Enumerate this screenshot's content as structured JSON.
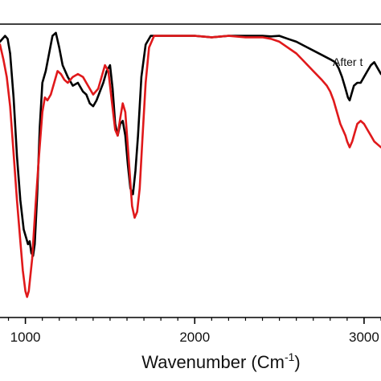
{
  "chart_data": {
    "type": "line",
    "title": "",
    "xlabel": {
      "base": "Wavenumber (Cm",
      "sup": "-1",
      "close": ")"
    },
    "ylabel": "",
    "xlim": [
      850,
      3100
    ],
    "ylim": [
      0.0,
      1.0
    ],
    "x_ticks": [
      1000,
      2000,
      3000
    ],
    "x_tick_labels": [
      "1000",
      "2000",
      "3000"
    ],
    "grid": false,
    "legend_text": "After t",
    "series": [
      {
        "color": "#000000",
        "points": [
          [
            850,
            0.94
          ],
          [
            880,
            0.96
          ],
          [
            895,
            0.95
          ],
          [
            910,
            0.9
          ],
          [
            930,
            0.75
          ],
          [
            950,
            0.55
          ],
          [
            970,
            0.4
          ],
          [
            990,
            0.3
          ],
          [
            1005,
            0.27
          ],
          [
            1015,
            0.25
          ],
          [
            1025,
            0.26
          ],
          [
            1035,
            0.22
          ],
          [
            1045,
            0.21
          ],
          [
            1055,
            0.25
          ],
          [
            1070,
            0.42
          ],
          [
            1085,
            0.65
          ],
          [
            1100,
            0.8
          ],
          [
            1120,
            0.84
          ],
          [
            1140,
            0.9
          ],
          [
            1160,
            0.96
          ],
          [
            1180,
            0.97
          ],
          [
            1200,
            0.92
          ],
          [
            1220,
            0.86
          ],
          [
            1250,
            0.82
          ],
          [
            1280,
            0.79
          ],
          [
            1310,
            0.8
          ],
          [
            1340,
            0.77
          ],
          [
            1360,
            0.76
          ],
          [
            1380,
            0.73
          ],
          [
            1400,
            0.72
          ],
          [
            1420,
            0.74
          ],
          [
            1440,
            0.77
          ],
          [
            1460,
            0.8
          ],
          [
            1480,
            0.84
          ],
          [
            1500,
            0.86
          ],
          [
            1515,
            0.78
          ],
          [
            1530,
            0.66
          ],
          [
            1545,
            0.62
          ],
          [
            1560,
            0.66
          ],
          [
            1575,
            0.67
          ],
          [
            1590,
            0.62
          ],
          [
            1605,
            0.52
          ],
          [
            1620,
            0.44
          ],
          [
            1635,
            0.42
          ],
          [
            1650,
            0.5
          ],
          [
            1665,
            0.62
          ],
          [
            1685,
            0.82
          ],
          [
            1710,
            0.93
          ],
          [
            1740,
            0.96
          ],
          [
            1800,
            0.96
          ],
          [
            1900,
            0.96
          ],
          [
            2000,
            0.96
          ],
          [
            2100,
            0.955
          ],
          [
            2200,
            0.96
          ],
          [
            2300,
            0.96
          ],
          [
            2400,
            0.96
          ],
          [
            2450,
            0.958
          ],
          [
            2500,
            0.96
          ],
          [
            2550,
            0.95
          ],
          [
            2600,
            0.94
          ],
          [
            2650,
            0.925
          ],
          [
            2700,
            0.91
          ],
          [
            2750,
            0.895
          ],
          [
            2800,
            0.88
          ],
          [
            2830,
            0.87
          ],
          [
            2850,
            0.85
          ],
          [
            2870,
            0.82
          ],
          [
            2890,
            0.78
          ],
          [
            2905,
            0.75
          ],
          [
            2915,
            0.74
          ],
          [
            2925,
            0.76
          ],
          [
            2940,
            0.79
          ],
          [
            2960,
            0.8
          ],
          [
            2980,
            0.8
          ],
          [
            3000,
            0.82
          ],
          [
            3020,
            0.84
          ],
          [
            3040,
            0.86
          ],
          [
            3060,
            0.87
          ],
          [
            3080,
            0.85
          ],
          [
            3100,
            0.83
          ]
        ]
      },
      {
        "color": "#e0191b",
        "points": [
          [
            850,
            0.93
          ],
          [
            870,
            0.88
          ],
          [
            890,
            0.82
          ],
          [
            910,
            0.72
          ],
          [
            930,
            0.56
          ],
          [
            950,
            0.4
          ],
          [
            970,
            0.26
          ],
          [
            985,
            0.16
          ],
          [
            1000,
            0.09
          ],
          [
            1010,
            0.07
          ],
          [
            1020,
            0.09
          ],
          [
            1040,
            0.2
          ],
          [
            1060,
            0.38
          ],
          [
            1080,
            0.55
          ],
          [
            1100,
            0.7
          ],
          [
            1115,
            0.75
          ],
          [
            1130,
            0.74
          ],
          [
            1150,
            0.76
          ],
          [
            1170,
            0.8
          ],
          [
            1190,
            0.84
          ],
          [
            1210,
            0.83
          ],
          [
            1230,
            0.81
          ],
          [
            1250,
            0.8
          ],
          [
            1280,
            0.82
          ],
          [
            1310,
            0.83
          ],
          [
            1340,
            0.82
          ],
          [
            1370,
            0.79
          ],
          [
            1400,
            0.76
          ],
          [
            1430,
            0.78
          ],
          [
            1450,
            0.82
          ],
          [
            1470,
            0.86
          ],
          [
            1490,
            0.84
          ],
          [
            1510,
            0.74
          ],
          [
            1530,
            0.64
          ],
          [
            1545,
            0.62
          ],
          [
            1560,
            0.68
          ],
          [
            1575,
            0.73
          ],
          [
            1590,
            0.7
          ],
          [
            1605,
            0.58
          ],
          [
            1620,
            0.46
          ],
          [
            1630,
            0.38
          ],
          [
            1645,
            0.34
          ],
          [
            1660,
            0.36
          ],
          [
            1675,
            0.44
          ],
          [
            1690,
            0.6
          ],
          [
            1710,
            0.8
          ],
          [
            1730,
            0.92
          ],
          [
            1760,
            0.96
          ],
          [
            1800,
            0.96
          ],
          [
            1900,
            0.96
          ],
          [
            2000,
            0.96
          ],
          [
            2100,
            0.955
          ],
          [
            2200,
            0.96
          ],
          [
            2300,
            0.955
          ],
          [
            2400,
            0.955
          ],
          [
            2450,
            0.95
          ],
          [
            2500,
            0.94
          ],
          [
            2550,
            0.92
          ],
          [
            2600,
            0.9
          ],
          [
            2650,
            0.87
          ],
          [
            2700,
            0.84
          ],
          [
            2750,
            0.81
          ],
          [
            2780,
            0.79
          ],
          [
            2800,
            0.77
          ],
          [
            2820,
            0.74
          ],
          [
            2840,
            0.7
          ],
          [
            2860,
            0.66
          ],
          [
            2875,
            0.64
          ],
          [
            2890,
            0.62
          ],
          [
            2900,
            0.6
          ],
          [
            2915,
            0.58
          ],
          [
            2930,
            0.6
          ],
          [
            2945,
            0.63
          ],
          [
            2960,
            0.66
          ],
          [
            2980,
            0.67
          ],
          [
            3000,
            0.66
          ],
          [
            3020,
            0.64
          ],
          [
            3040,
            0.62
          ],
          [
            3060,
            0.6
          ],
          [
            3080,
            0.59
          ],
          [
            3100,
            0.58
          ]
        ]
      }
    ]
  }
}
